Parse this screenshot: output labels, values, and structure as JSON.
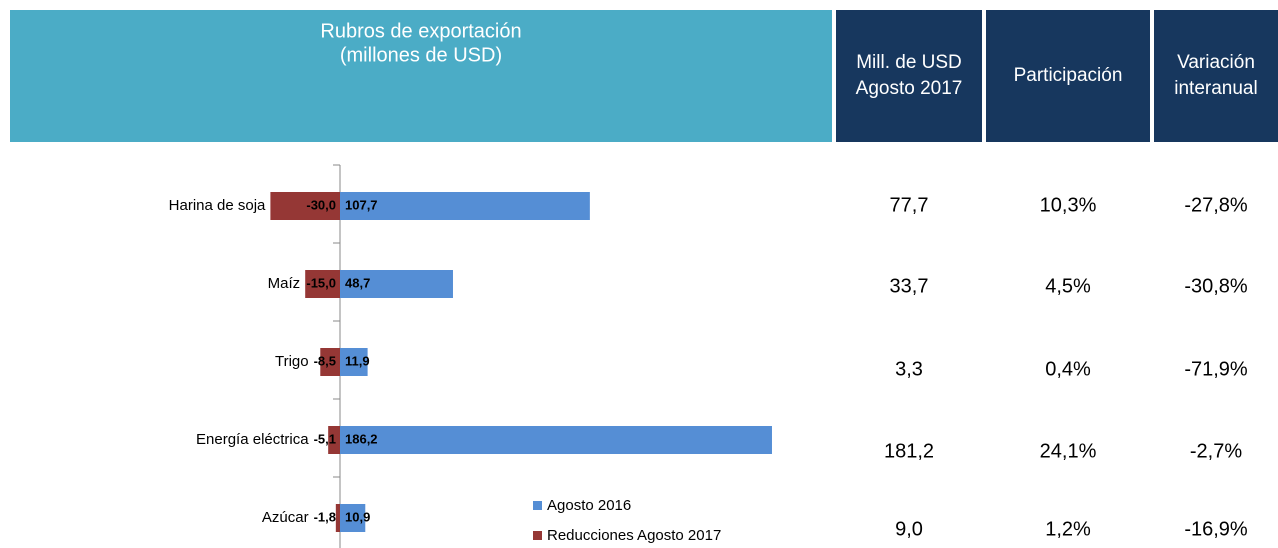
{
  "chart_data": {
    "type": "hbar",
    "title": [
      "Rubros de exportación",
      "(millones de USD)"
    ],
    "categories": [
      "Harina de soja",
      "Maíz",
      "Trigo",
      "Energía eléctrica",
      "Azúcar"
    ],
    "series": [
      {
        "name": "Agosto 2016",
        "color": "#558ed5",
        "values": [
          107.7,
          48.7,
          11.9,
          186.2,
          10.9
        ],
        "value_labels": [
          "107,7",
          "48,7",
          "11,9",
          "186,2",
          "10,9"
        ]
      },
      {
        "name": "Reducciones Agosto 2017",
        "color": "#953735",
        "values": [
          -30.0,
          -15.0,
          -8.5,
          -5.1,
          -1.8
        ],
        "value_labels": [
          "-30,0",
          "-15,0",
          "-8,5",
          "-5,1",
          "-1,8"
        ]
      }
    ],
    "xlim": [
      -40,
      200
    ],
    "legend": "bottom-right"
  },
  "table": {
    "headers": [
      [
        "Mill. de USD",
        "Agosto 2017"
      ],
      [
        "Participación"
      ],
      [
        "Variación",
        "interanual"
      ]
    ],
    "rows": [
      [
        "77,7",
        "10,3%",
        "-27,8%"
      ],
      [
        "33,7",
        "4,5%",
        "-30,8%"
      ],
      [
        "3,3",
        "0,4%",
        "-71,9%"
      ],
      [
        "181,2",
        "24,1%",
        "-2,7%"
      ],
      [
        "9,0",
        "1,2%",
        "-16,9%"
      ]
    ]
  }
}
